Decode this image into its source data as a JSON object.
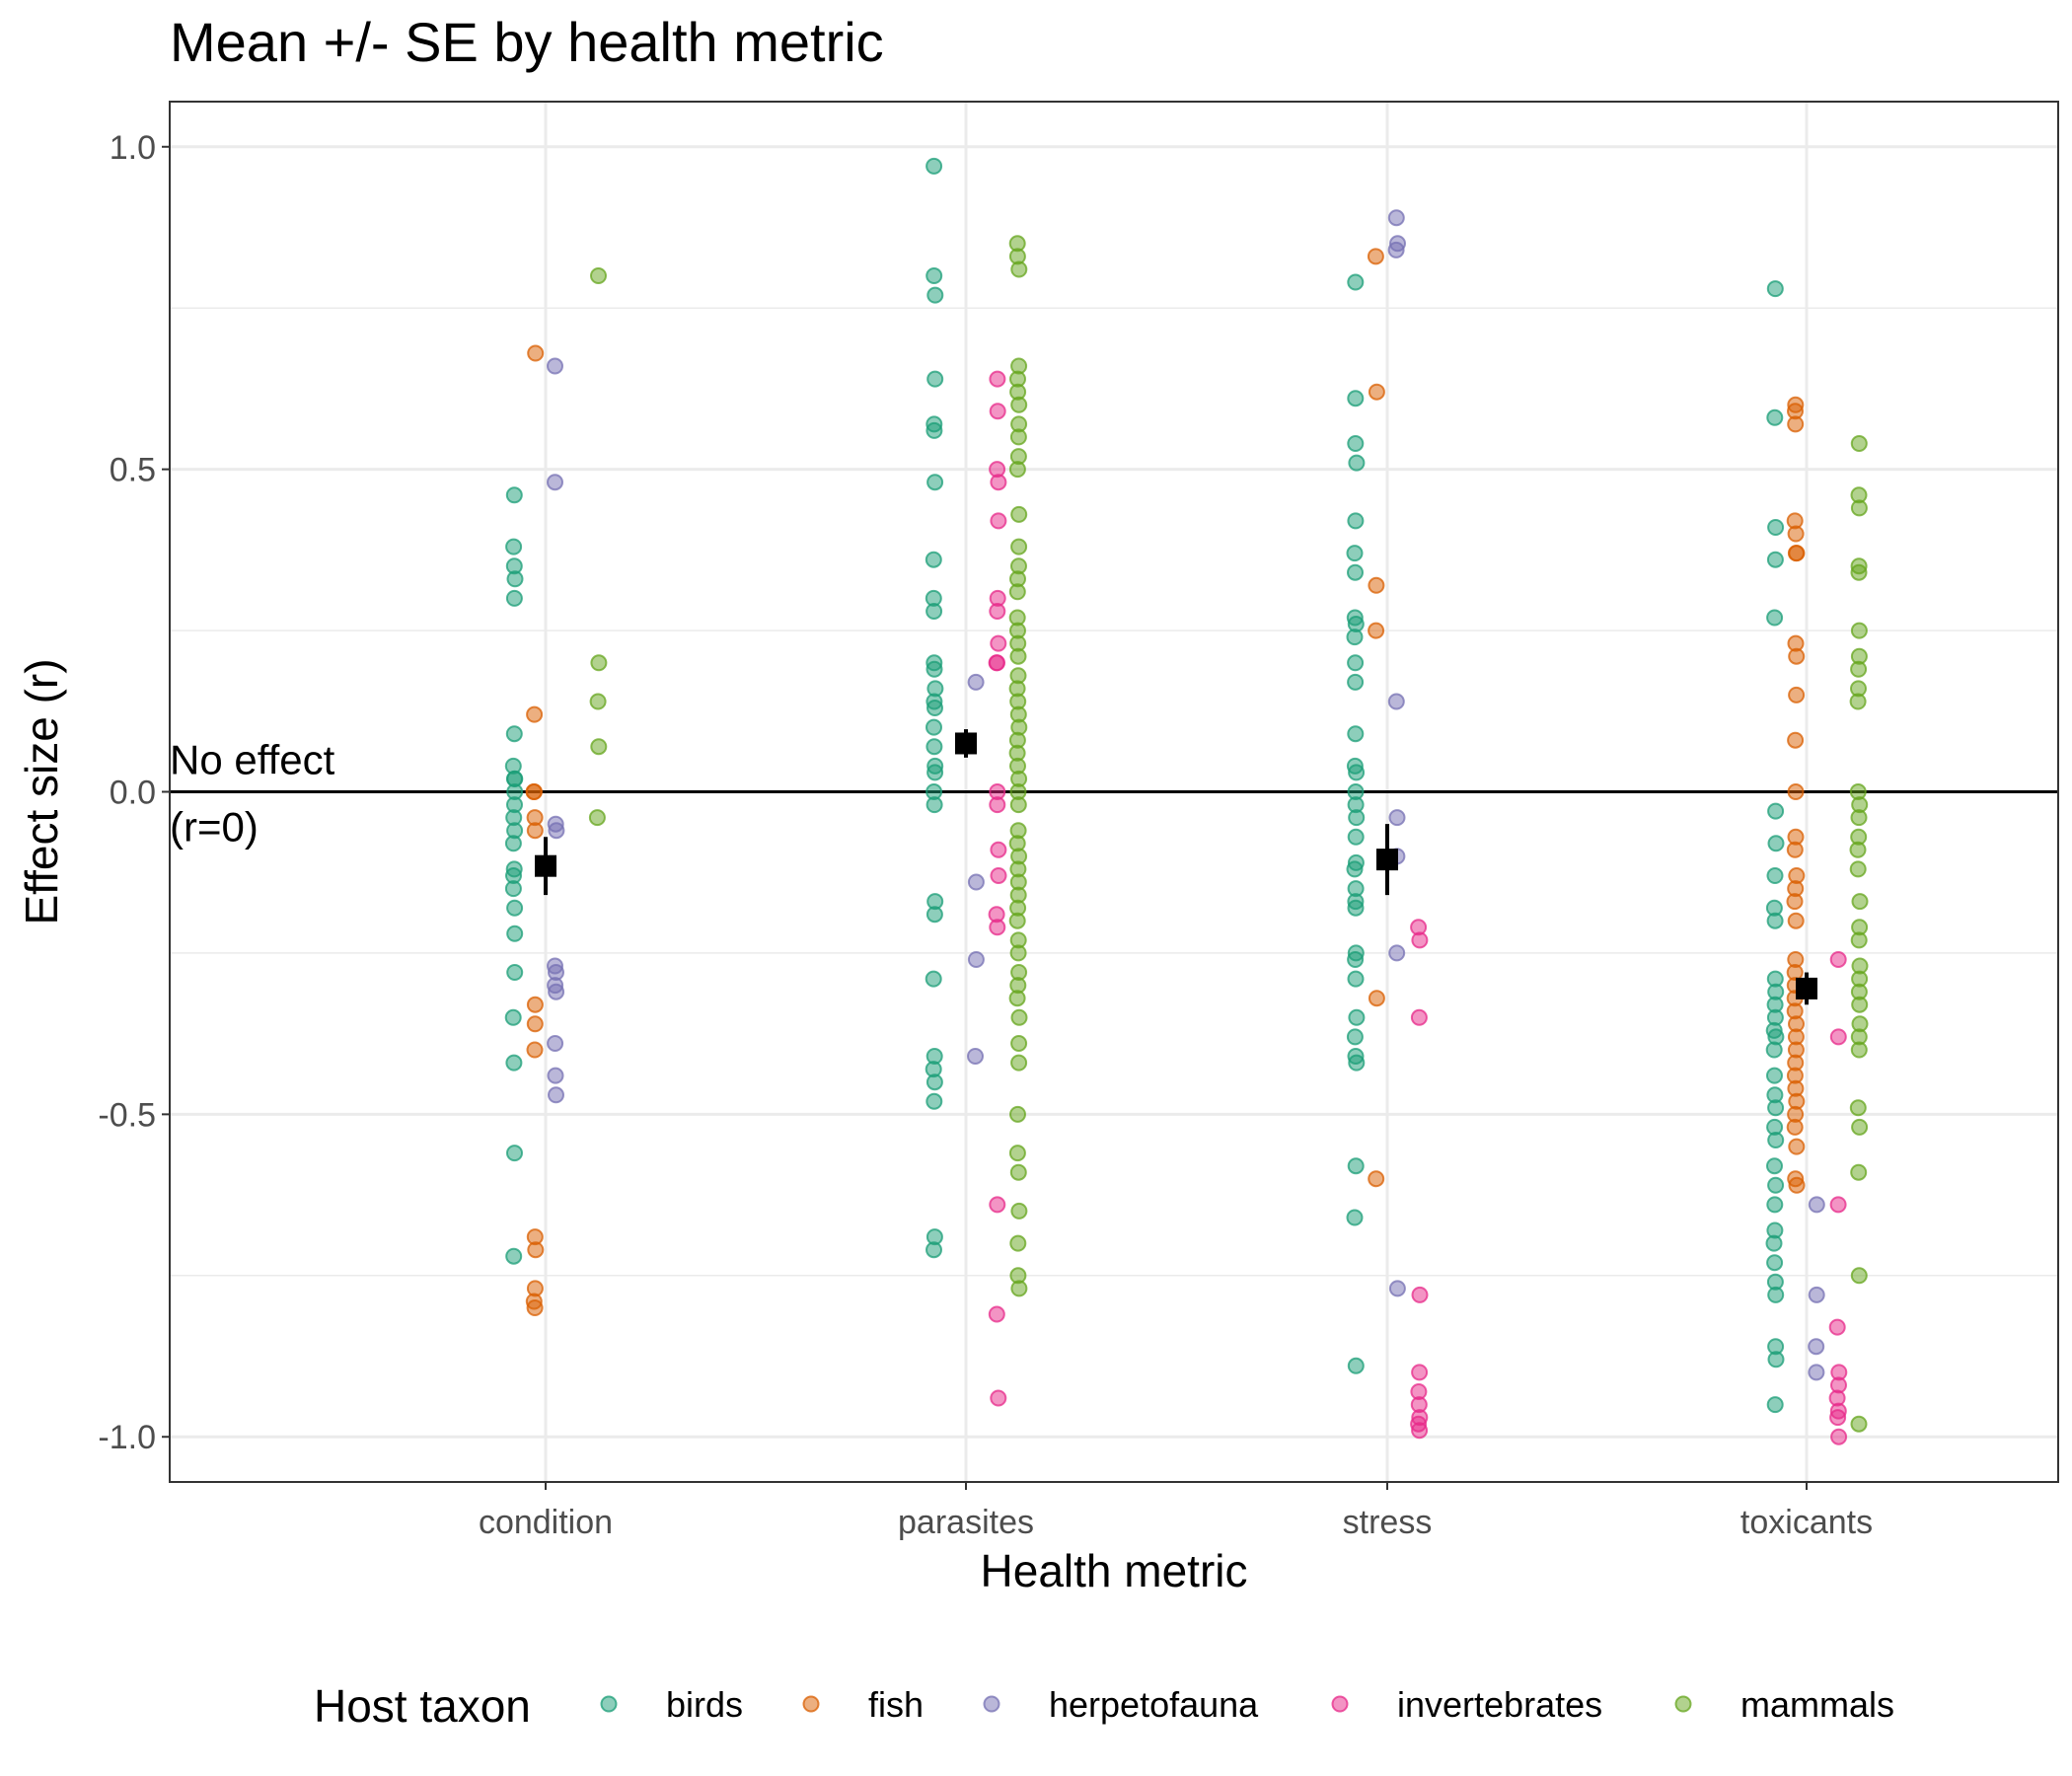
{
  "chart_data": {
    "type": "scatter",
    "title": "Mean +/- SE by health metric",
    "xlabel": "Health metric",
    "ylabel": "Effect size (r)",
    "ylim": [
      -1.07,
      1.07
    ],
    "yticks": [
      -1.0,
      -0.5,
      0.0,
      0.5,
      1.0
    ],
    "ytick_labels": [
      "-1.0",
      "-0.5",
      "0.0",
      "0.5",
      "1.0"
    ],
    "categories": [
      "condition",
      "parasites",
      "stress",
      "toxicants"
    ],
    "grid": true,
    "legend": {
      "title": "Host taxon",
      "position": "bottom"
    },
    "reference_line": {
      "y": 0,
      "label_lines": [
        "No effect",
        "(r=0)"
      ]
    },
    "series": [
      {
        "name": "birds",
        "color": "#1B9E77",
        "points": {
          "condition": [
            0.46,
            0.38,
            0.35,
            0.33,
            0.3,
            0.09,
            0.04,
            0.02,
            0.02,
            0.0,
            -0.02,
            -0.04,
            -0.06,
            -0.08,
            -0.12,
            -0.13,
            -0.15,
            -0.18,
            -0.22,
            -0.28,
            -0.35,
            -0.42,
            -0.56,
            -0.72
          ],
          "parasites": [
            0.97,
            0.8,
            0.77,
            0.64,
            0.57,
            0.56,
            0.48,
            0.36,
            0.3,
            0.28,
            0.2,
            0.19,
            0.16,
            0.14,
            0.13,
            0.1,
            0.07,
            0.04,
            0.03,
            0.0,
            -0.02,
            -0.17,
            -0.19,
            -0.29,
            -0.41,
            -0.43,
            -0.45,
            -0.48,
            -0.69,
            -0.71
          ],
          "stress": [
            0.79,
            0.61,
            0.54,
            0.51,
            0.42,
            0.37,
            0.34,
            0.27,
            0.26,
            0.24,
            0.2,
            0.17,
            0.09,
            0.04,
            0.03,
            0.0,
            -0.02,
            -0.04,
            -0.07,
            -0.11,
            -0.12,
            -0.15,
            -0.17,
            -0.18,
            -0.25,
            -0.26,
            -0.29,
            -0.35,
            -0.38,
            -0.41,
            -0.42,
            -0.58,
            -0.66,
            -0.89
          ],
          "toxicants": [
            0.78,
            0.58,
            0.41,
            0.36,
            0.27,
            -0.03,
            -0.08,
            -0.13,
            -0.18,
            -0.2,
            -0.29,
            -0.31,
            -0.33,
            -0.35,
            -0.37,
            -0.38,
            -0.4,
            -0.44,
            -0.47,
            -0.49,
            -0.52,
            -0.54,
            -0.58,
            -0.61,
            -0.64,
            -0.68,
            -0.7,
            -0.73,
            -0.76,
            -0.78,
            -0.86,
            -0.88,
            -0.95
          ]
        }
      },
      {
        "name": "fish",
        "color": "#D95F02",
        "points": {
          "condition": [
            0.68,
            0.12,
            0.0,
            0.0,
            -0.04,
            -0.06,
            -0.33,
            -0.36,
            -0.4,
            -0.69,
            -0.71,
            -0.77,
            -0.79,
            -0.8
          ],
          "parasites": [],
          "stress": [
            0.83,
            0.62,
            0.32,
            0.25,
            -0.32,
            -0.6
          ],
          "toxicants": [
            0.6,
            0.59,
            0.57,
            0.42,
            0.4,
            0.37,
            0.37,
            0.23,
            0.21,
            0.15,
            0.08,
            0.0,
            -0.07,
            -0.09,
            -0.13,
            -0.15,
            -0.17,
            -0.2,
            -0.26,
            -0.28,
            -0.3,
            -0.32,
            -0.34,
            -0.36,
            -0.38,
            -0.4,
            -0.42,
            -0.44,
            -0.46,
            -0.48,
            -0.5,
            -0.52,
            -0.55,
            -0.6,
            -0.61
          ]
        }
      },
      {
        "name": "herpetofauna",
        "color": "#7570B3",
        "points": {
          "condition": [
            0.66,
            0.48,
            -0.05,
            -0.06,
            -0.27,
            -0.28,
            -0.3,
            -0.31,
            -0.39,
            -0.44,
            -0.47
          ],
          "parasites": [
            0.17,
            -0.14,
            -0.26,
            -0.41
          ],
          "stress": [
            0.89,
            0.85,
            0.84,
            0.14,
            -0.04,
            -0.1,
            -0.25,
            -0.77
          ],
          "toxicants": [
            -0.64,
            -0.78,
            -0.86,
            -0.9
          ]
        }
      },
      {
        "name": "invertebrates",
        "color": "#E7298A",
        "points": {
          "condition": [],
          "parasites": [
            0.64,
            0.59,
            0.5,
            0.48,
            0.42,
            0.3,
            0.28,
            0.23,
            0.2,
            0.2,
            0.0,
            -0.02,
            -0.09,
            -0.13,
            -0.19,
            -0.21,
            -0.64,
            -0.81,
            -0.94
          ],
          "stress": [
            -0.21,
            -0.23,
            -0.35,
            -0.78,
            -0.9,
            -0.93,
            -0.95,
            -0.97,
            -0.98,
            -0.99
          ],
          "toxicants": [
            -0.26,
            -0.38,
            -0.64,
            -0.83,
            -0.9,
            -0.92,
            -0.94,
            -0.96,
            -0.97,
            -1.0
          ]
        }
      },
      {
        "name": "mammals",
        "color": "#66A61E",
        "points": {
          "condition": [
            0.8,
            0.2,
            0.14,
            0.07,
            -0.04
          ],
          "parasites": [
            0.85,
            0.83,
            0.81,
            0.66,
            0.64,
            0.62,
            0.6,
            0.57,
            0.55,
            0.52,
            0.5,
            0.43,
            0.38,
            0.35,
            0.33,
            0.31,
            0.27,
            0.25,
            0.23,
            0.21,
            0.18,
            0.16,
            0.14,
            0.12,
            0.1,
            0.08,
            0.06,
            0.04,
            0.02,
            0.0,
            -0.02,
            -0.06,
            -0.08,
            -0.1,
            -0.12,
            -0.14,
            -0.16,
            -0.18,
            -0.2,
            -0.23,
            -0.25,
            -0.28,
            -0.3,
            -0.32,
            -0.35,
            -0.39,
            -0.42,
            -0.5,
            -0.56,
            -0.59,
            -0.65,
            -0.7,
            -0.75,
            -0.77
          ],
          "stress": [],
          "toxicants": [
            0.54,
            0.46,
            0.44,
            0.35,
            0.34,
            0.25,
            0.21,
            0.19,
            0.16,
            0.14,
            0.0,
            -0.02,
            -0.04,
            -0.07,
            -0.09,
            -0.12,
            -0.17,
            -0.21,
            -0.23,
            -0.27,
            -0.29,
            -0.31,
            -0.33,
            -0.36,
            -0.38,
            -0.4,
            -0.49,
            -0.52,
            -0.59,
            -0.75,
            -0.98
          ]
        }
      }
    ],
    "summary": {
      "marker": "filled-square",
      "color": "#000000",
      "points": [
        {
          "category": "condition",
          "mean": -0.115,
          "se": 0.045
        },
        {
          "category": "parasites",
          "mean": 0.075,
          "se": 0.022
        },
        {
          "category": "stress",
          "mean": -0.105,
          "se": 0.055
        },
        {
          "category": "toxicants",
          "mean": -0.305,
          "se": 0.025
        }
      ]
    }
  }
}
